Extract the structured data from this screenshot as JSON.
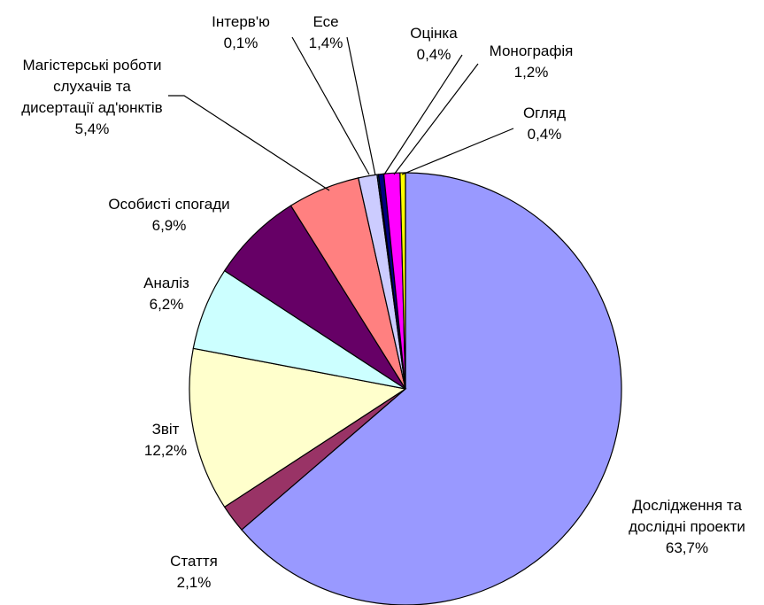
{
  "chart_data": {
    "type": "pie",
    "categories": [
      "Дослідження та дослідні проекти",
      "Стаття",
      "Звіт",
      "Аналіз",
      "Особисті спогади",
      "Магістерські роботи слухачів та дисертації ад'юнктів",
      "Есе",
      "Інтерв'ю",
      "Оцінка",
      "Монографія",
      "Огляд"
    ],
    "values": [
      63.7,
      2.1,
      12.2,
      6.2,
      6.9,
      5.4,
      1.4,
      0.1,
      0.4,
      1.2,
      0.4
    ],
    "value_labels": [
      "63,7%",
      "2,1%",
      "12,2%",
      "6,2%",
      "6,9%",
      "5,4%",
      "1,4%",
      "0,1%",
      "0,4%",
      "1,2%",
      "0,4%"
    ],
    "colors": [
      "#9999ff",
      "#993366",
      "#ffffcc",
      "#ccffff",
      "#660066",
      "#ff8080",
      "#ccccff",
      "#0066cc",
      "#000080",
      "#ff00ff",
      "#ffff00"
    ]
  }
}
